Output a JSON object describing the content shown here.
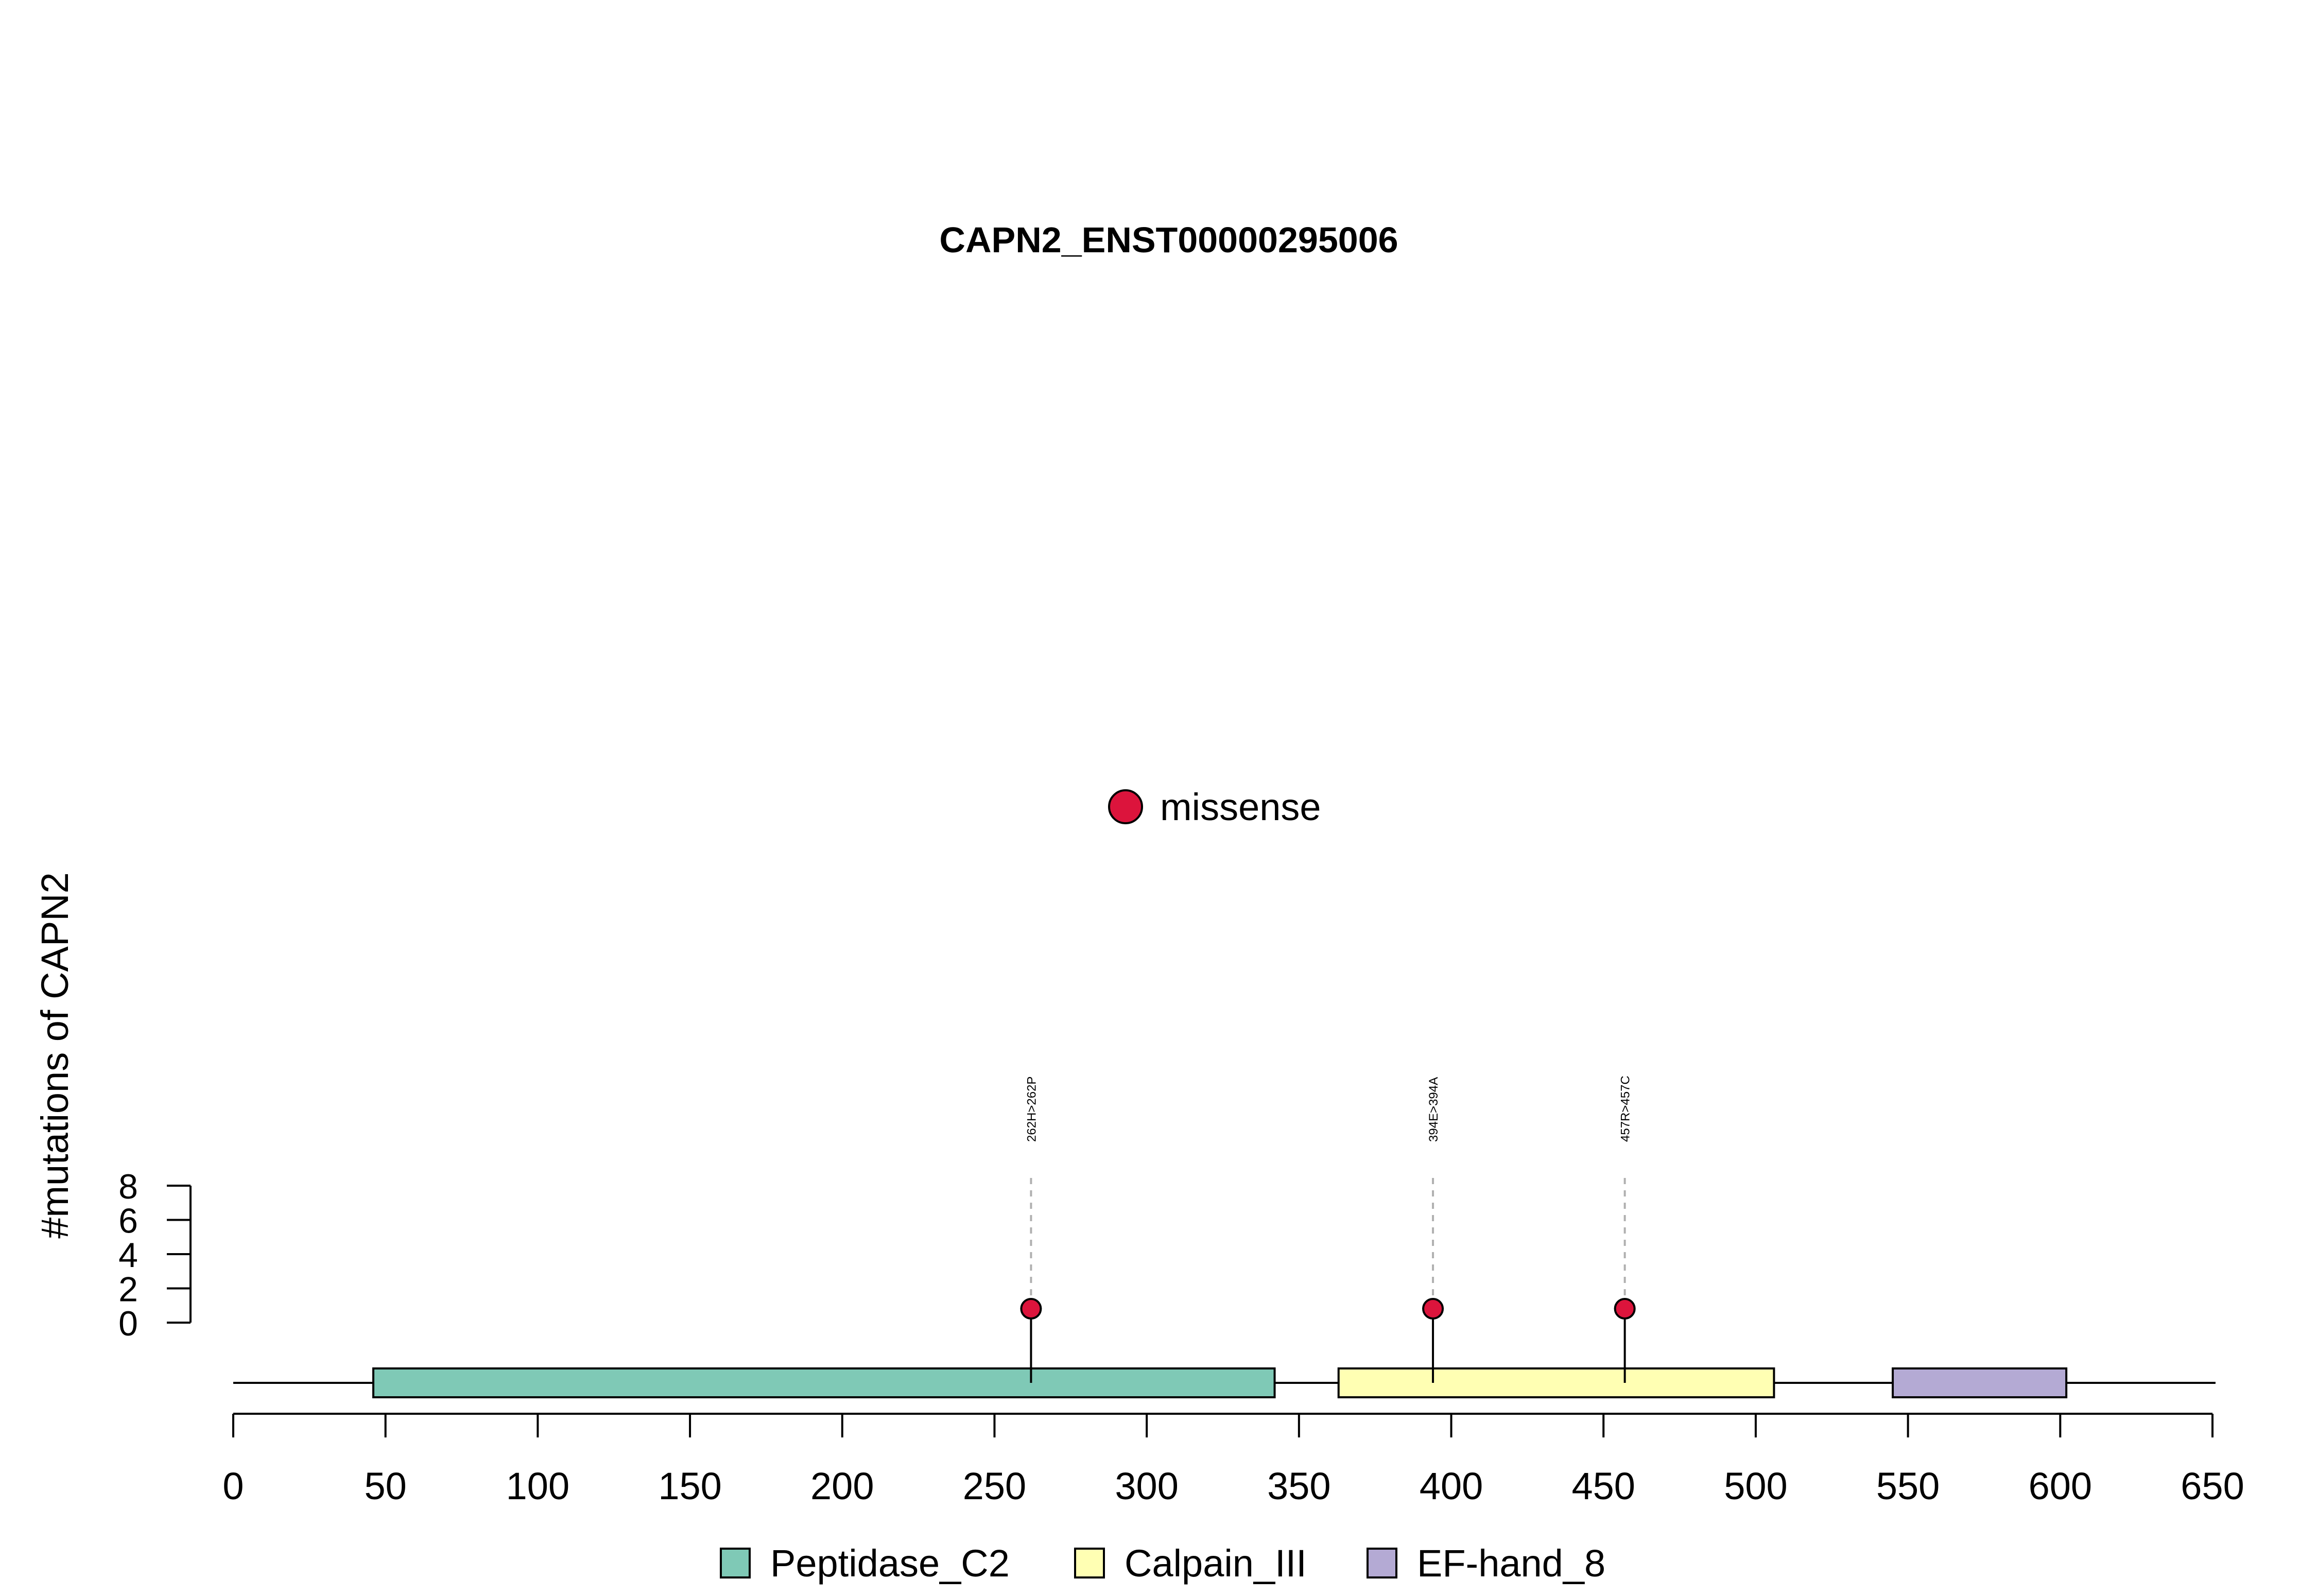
{
  "chart_data": {
    "type": "lollipop",
    "title": "CAPN2_ENST00000295006",
    "xlabel": "",
    "ylabel": "#mutations of CAPN2",
    "xlim": [
      0,
      650
    ],
    "x_ticks": [
      0,
      50,
      100,
      150,
      200,
      250,
      300,
      350,
      400,
      450,
      500,
      550,
      600,
      650
    ],
    "ylim": [
      0,
      8
    ],
    "y_ticks": [
      0,
      2,
      4,
      6,
      8
    ],
    "protein_length": 651,
    "mutation_legend": [
      {
        "label": "missense",
        "color": "#dc143c"
      }
    ],
    "mutations": [
      {
        "position": 262,
        "count": 1,
        "label": "262H>262P",
        "type": "missense"
      },
      {
        "position": 394,
        "count": 1,
        "label": "394E>394A",
        "type": "missense"
      },
      {
        "position": 457,
        "count": 1,
        "label": "457R>457C",
        "type": "missense"
      }
    ],
    "domains": [
      {
        "name": "Peptidase_C2",
        "start": 46,
        "end": 342,
        "color": "#7fc9b6"
      },
      {
        "name": "Calpain_III",
        "start": 363,
        "end": 506,
        "color": "#ffffb3"
      },
      {
        "name": "EF-hand_8",
        "start": 545,
        "end": 602,
        "color": "#b4aad4"
      }
    ],
    "domain_legend": [
      {
        "label": "Peptidase_C2",
        "color": "#7fc9b6"
      },
      {
        "label": "Calpain_III",
        "color": "#ffffb3"
      },
      {
        "label": "EF-hand_8",
        "color": "#b4aad4"
      }
    ]
  }
}
